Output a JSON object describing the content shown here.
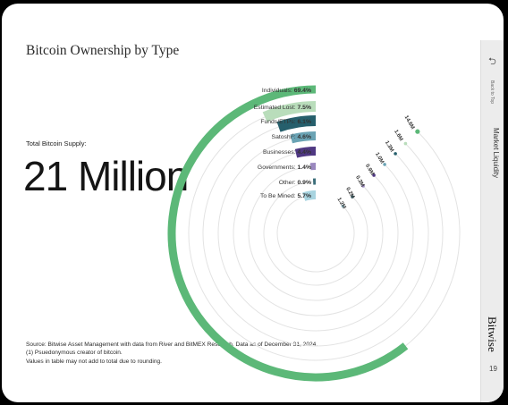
{
  "title": "Bitcoin Ownership by Type",
  "supply": {
    "label": "Total Bitcoin Supply:",
    "value": "21 Million"
  },
  "footnotes": [
    "Source: Bitwise Asset Management with data from River and BitMEX Research. Data as of December 31, 2024.",
    "(1) Psuedonymous creator of bitcoin.",
    "Values in table may not add to total due to rounding."
  ],
  "sidebar": {
    "back_icon": "back-arrow-icon",
    "back_label": "Back to Top",
    "section_label": "Market Liquidity",
    "brand": "Bitwise",
    "page_number": "19"
  },
  "chart_data": {
    "type": "radial-bar",
    "title": "Bitcoin Ownership by Type",
    "unit": "%",
    "series": [
      {
        "label": "Individuals: ",
        "value": 69.4,
        "value_text": "69.4%",
        "color": "#5cb878"
      },
      {
        "label": "Estimated Lost: ",
        "value": 7.5,
        "value_text": "7.5%",
        "color": "#b9ddbb"
      },
      {
        "label": "Funds/ETPs: ",
        "value": 6.1,
        "value_text": "6.1%",
        "color": "#265f6c"
      },
      {
        "label": "Satoshi",
        "superscript": "1",
        "label_suffix": ": ",
        "value": 4.6,
        "value_text": "4.6%",
        "color": "#6aa3b4"
      },
      {
        "label": "Businesses: ",
        "value": 4.4,
        "value_text": "4.4%",
        "color": "#4f3882"
      },
      {
        "label": "Governments: ",
        "value": 1.4,
        "value_text": "1.4%",
        "color": "#9a88bf"
      },
      {
        "label": "Other: ",
        "value": 0.9,
        "value_text": "0.9%",
        "color": "#3c6e7a"
      },
      {
        "label": "To Be Mined: ",
        "value": 5.7,
        "value_text": "5.7%",
        "color": "#a8d4e0"
      }
    ],
    "scale_labels": [
      {
        "text": "14.6M",
        "color": "#5cb878"
      },
      {
        "text": "1.6M",
        "color": "#b9ddbb"
      },
      {
        "text": "1.3M",
        "color": "#265f6c"
      },
      {
        "text": "1.0M",
        "color": "#6aa3b4"
      },
      {
        "text": "0.9M",
        "color": "#4f3882"
      },
      {
        "text": "0.3M",
        "color": "#9a88bf"
      },
      {
        "text": "0.2M",
        "color": "#3c6e7a"
      },
      {
        "text": "1.2M",
        "color": "#a8d4e0"
      }
    ]
  }
}
